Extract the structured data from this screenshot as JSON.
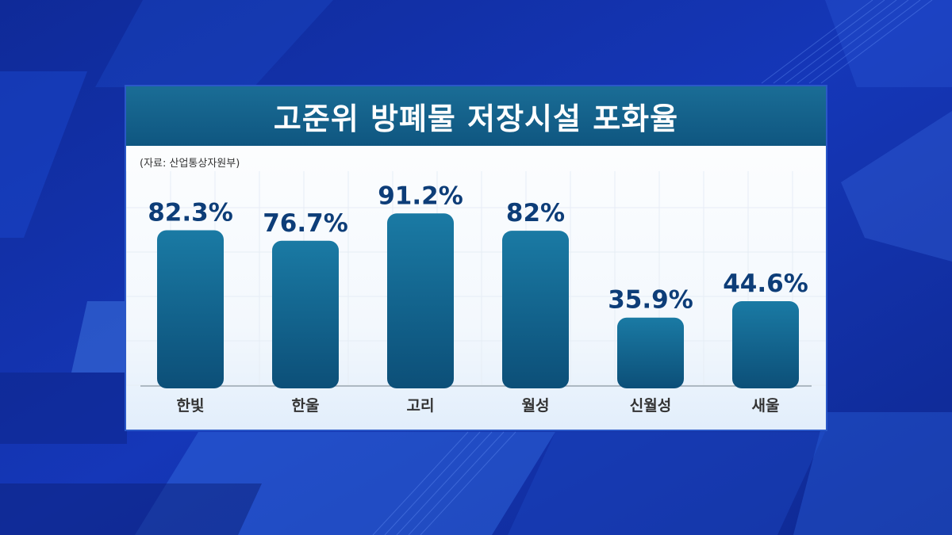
{
  "title": "고준위 방폐물 저장시설 포화율",
  "source": "(자료: 산업통상자원부)",
  "colors": {
    "background": "#1230a8",
    "title_bar": "#145f8a",
    "bar_top": "#1a7aa4",
    "bar_bottom": "#0c4f78",
    "value_label": "#0d3d78"
  },
  "chart_data": {
    "type": "bar",
    "categories": [
      "한빛",
      "한울",
      "고리",
      "월성",
      "신월성",
      "새울"
    ],
    "values": [
      82.3,
      76.7,
      91.2,
      82,
      35.9,
      44.6
    ],
    "value_labels": [
      "82.3%",
      "76.7%",
      "91.2%",
      "82%",
      "35.9%",
      "44.6%"
    ],
    "ylim": [
      0,
      100
    ],
    "grid": true,
    "legend": "none"
  }
}
